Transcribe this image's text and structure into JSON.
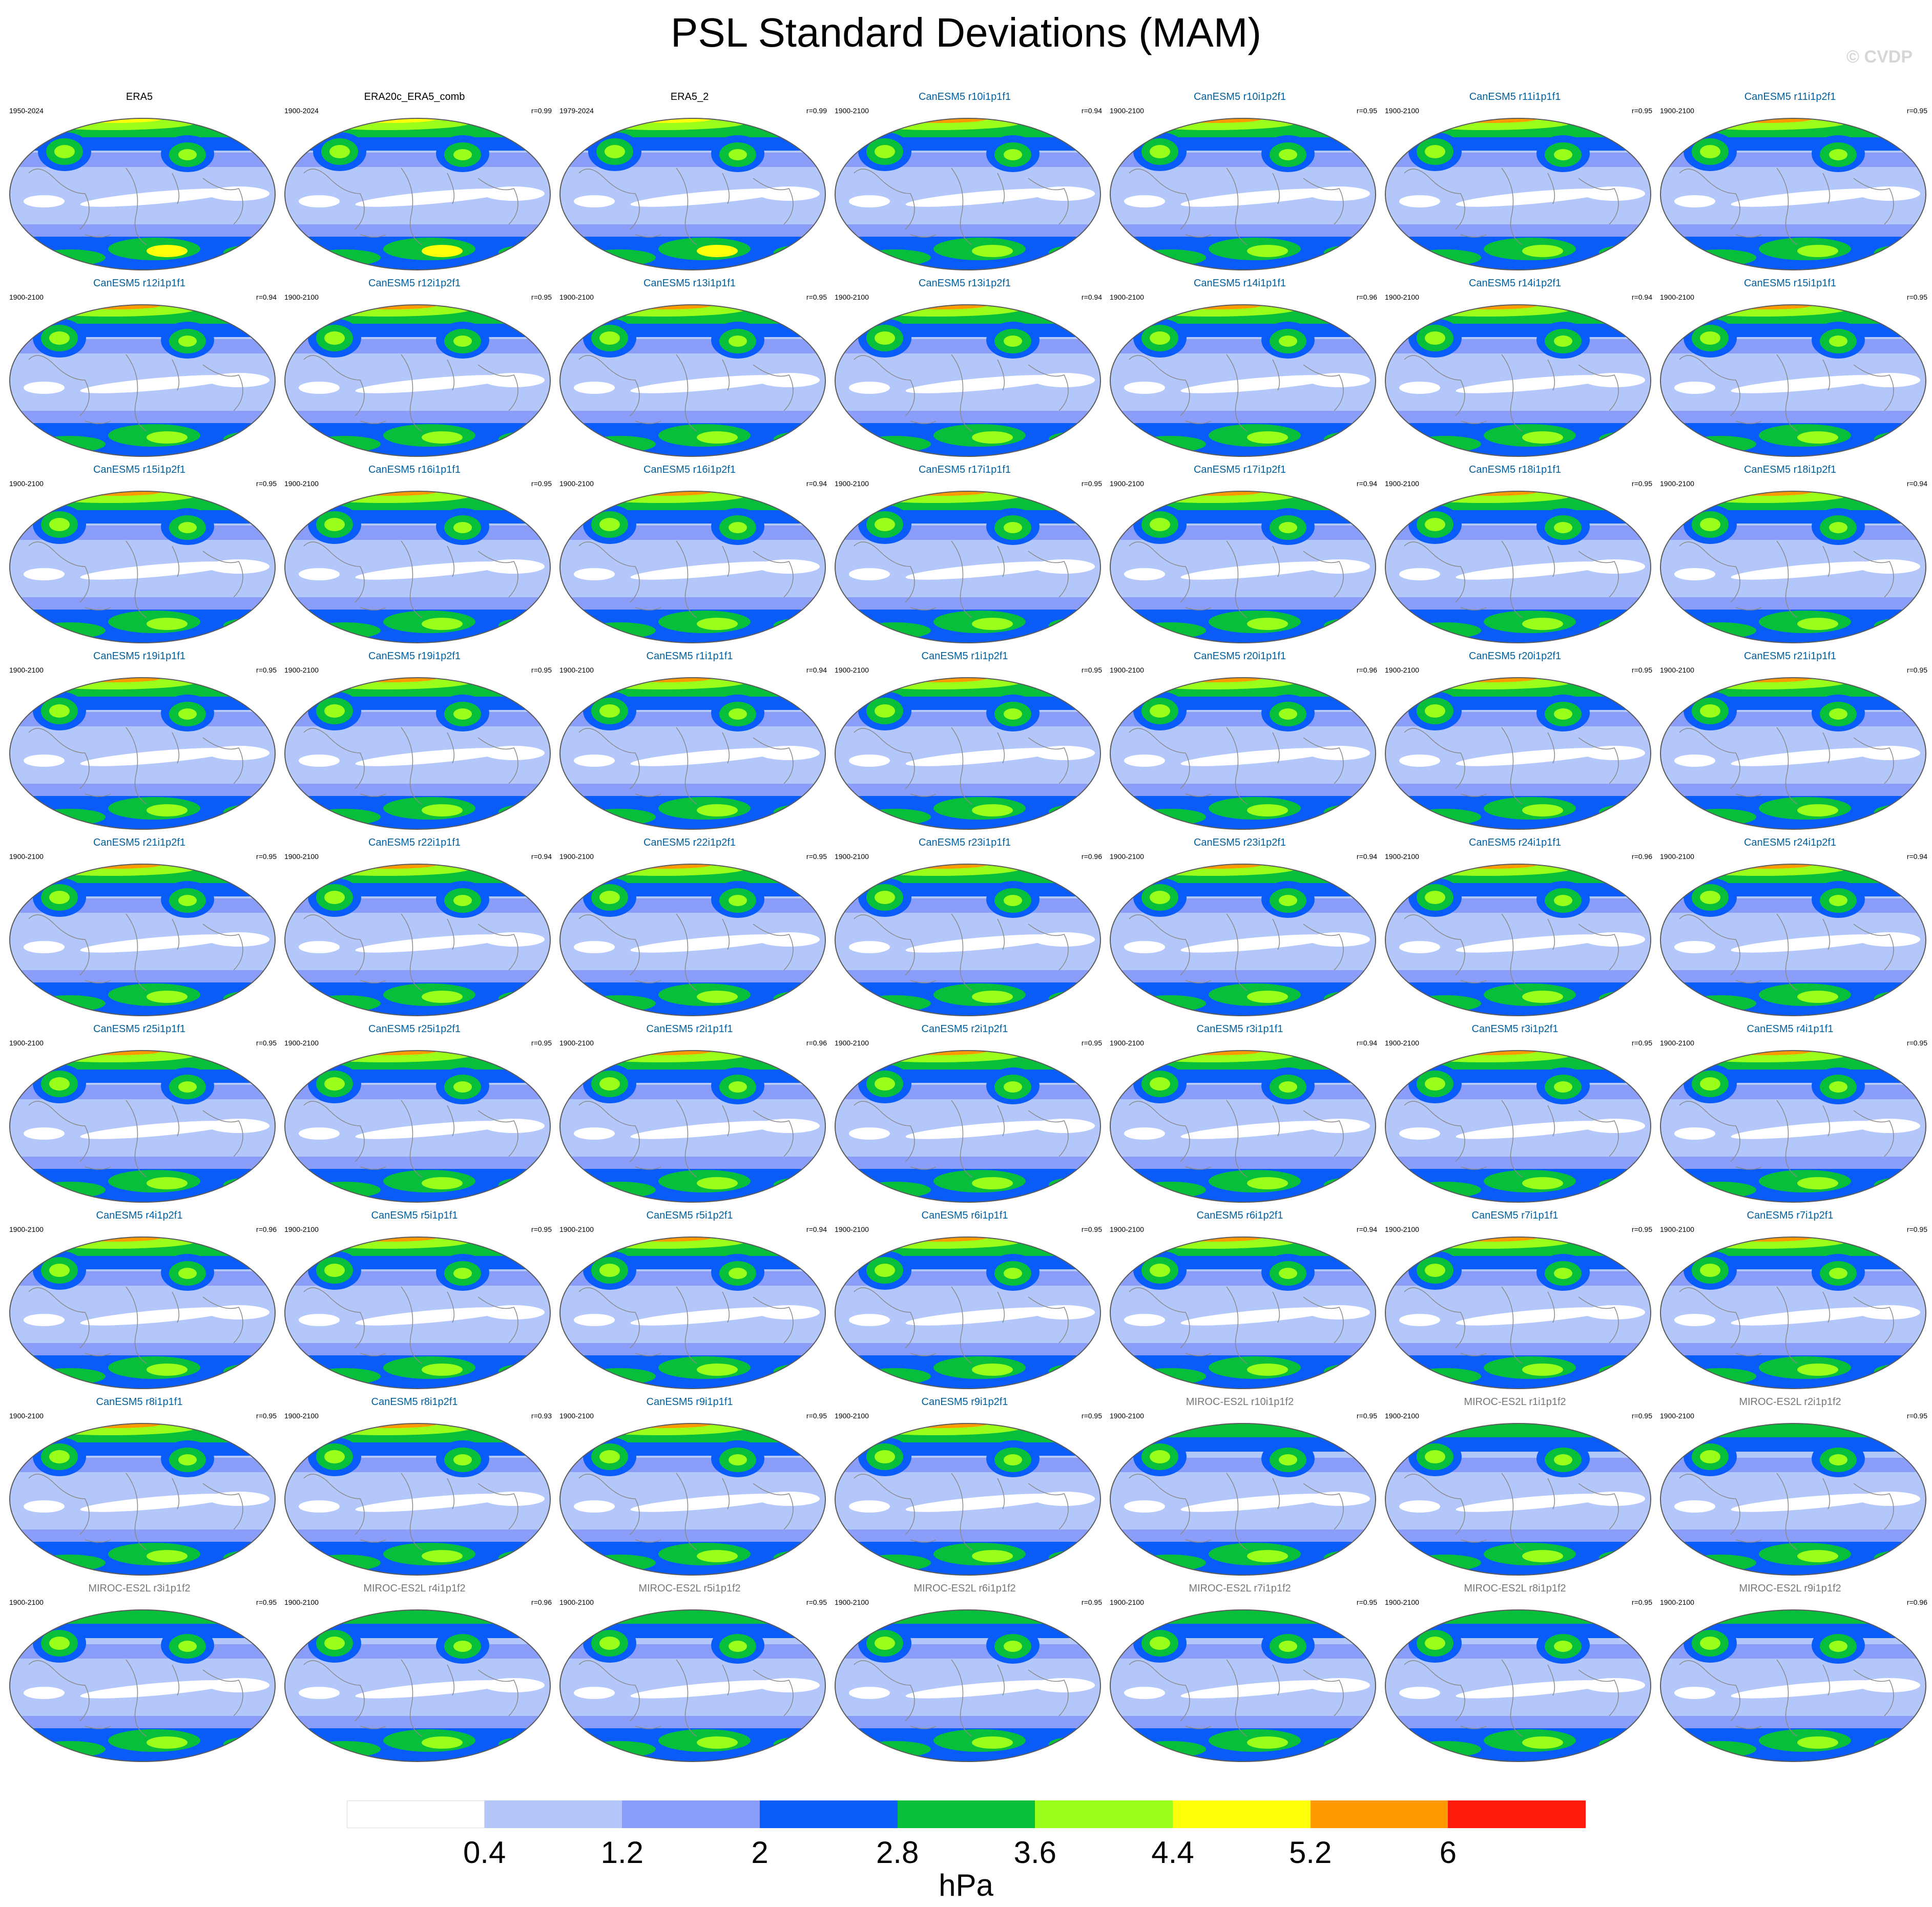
{
  "title": "PSL Standard Deviations (MAM)",
  "credit": "© CVDP",
  "units": "hPa",
  "colorbar": {
    "colors": [
      "#ffffff",
      "#b4c7fb",
      "#8a9df8",
      "#0a5cfa",
      "#07bf3b",
      "#9aff1a",
      "#ffff0a",
      "#ff9a00",
      "#ff1a0a"
    ],
    "labels": [
      "0.4",
      "1.2",
      "2",
      "2.8",
      "3.6",
      "4.4",
      "5.2",
      "6"
    ]
  },
  "title_colors": {
    "obs": "#000000",
    "CanESM5": "#005f9e",
    "MIROC-ES2L": "#777777"
  },
  "panels": [
    {
      "title": "ERA5",
      "period": "1950-2024",
      "r": "",
      "group": "obs"
    },
    {
      "title": "ERA20c_ERA5_comb",
      "period": "1900-2024",
      "r": "r=0.99",
      "group": "obs"
    },
    {
      "title": "ERA5_2",
      "period": "1979-2024",
      "r": "r=0.99",
      "group": "obs"
    },
    {
      "title": "CanESM5 r10i1p1f1",
      "period": "1900-2100",
      "r": "r=0.94",
      "group": "CanESM5"
    },
    {
      "title": "CanESM5 r10i1p2f1",
      "period": "1900-2100",
      "r": "r=0.95",
      "group": "CanESM5"
    },
    {
      "title": "CanESM5 r11i1p1f1",
      "period": "1900-2100",
      "r": "r=0.95",
      "group": "CanESM5"
    },
    {
      "title": "CanESM5 r11i1p2f1",
      "period": "1900-2100",
      "r": "r=0.95",
      "group": "CanESM5"
    },
    {
      "title": "CanESM5 r12i1p1f1",
      "period": "1900-2100",
      "r": "r=0.94",
      "group": "CanESM5"
    },
    {
      "title": "CanESM5 r12i1p2f1",
      "period": "1900-2100",
      "r": "r=0.95",
      "group": "CanESM5"
    },
    {
      "title": "CanESM5 r13i1p1f1",
      "period": "1900-2100",
      "r": "r=0.95",
      "group": "CanESM5"
    },
    {
      "title": "CanESM5 r13i1p2f1",
      "period": "1900-2100",
      "r": "r=0.94",
      "group": "CanESM5"
    },
    {
      "title": "CanESM5 r14i1p1f1",
      "period": "1900-2100",
      "r": "r=0.96",
      "group": "CanESM5"
    },
    {
      "title": "CanESM5 r14i1p2f1",
      "period": "1900-2100",
      "r": "r=0.94",
      "group": "CanESM5"
    },
    {
      "title": "CanESM5 r15i1p1f1",
      "period": "1900-2100",
      "r": "r=0.95",
      "group": "CanESM5"
    },
    {
      "title": "CanESM5 r15i1p2f1",
      "period": "1900-2100",
      "r": "r=0.95",
      "group": "CanESM5"
    },
    {
      "title": "CanESM5 r16i1p1f1",
      "period": "1900-2100",
      "r": "r=0.95",
      "group": "CanESM5"
    },
    {
      "title": "CanESM5 r16i1p2f1",
      "period": "1900-2100",
      "r": "r=0.94",
      "group": "CanESM5"
    },
    {
      "title": "CanESM5 r17i1p1f1",
      "period": "1900-2100",
      "r": "r=0.95",
      "group": "CanESM5"
    },
    {
      "title": "CanESM5 r17i1p2f1",
      "period": "1900-2100",
      "r": "r=0.94",
      "group": "CanESM5"
    },
    {
      "title": "CanESM5 r18i1p1f1",
      "period": "1900-2100",
      "r": "r=0.95",
      "group": "CanESM5"
    },
    {
      "title": "CanESM5 r18i1p2f1",
      "period": "1900-2100",
      "r": "r=0.94",
      "group": "CanESM5"
    },
    {
      "title": "CanESM5 r19i1p1f1",
      "period": "1900-2100",
      "r": "r=0.95",
      "group": "CanESM5"
    },
    {
      "title": "CanESM5 r19i1p2f1",
      "period": "1900-2100",
      "r": "r=0.95",
      "group": "CanESM5"
    },
    {
      "title": "CanESM5 r1i1p1f1",
      "period": "1900-2100",
      "r": "r=0.94",
      "group": "CanESM5"
    },
    {
      "title": "CanESM5 r1i1p2f1",
      "period": "1900-2100",
      "r": "r=0.95",
      "group": "CanESM5"
    },
    {
      "title": "CanESM5 r20i1p1f1",
      "period": "1900-2100",
      "r": "r=0.96",
      "group": "CanESM5"
    },
    {
      "title": "CanESM5 r20i1p2f1",
      "period": "1900-2100",
      "r": "r=0.95",
      "group": "CanESM5"
    },
    {
      "title": "CanESM5 r21i1p1f1",
      "period": "1900-2100",
      "r": "r=0.95",
      "group": "CanESM5"
    },
    {
      "title": "CanESM5 r21i1p2f1",
      "period": "1900-2100",
      "r": "r=0.95",
      "group": "CanESM5"
    },
    {
      "title": "CanESM5 r22i1p1f1",
      "period": "1900-2100",
      "r": "r=0.94",
      "group": "CanESM5"
    },
    {
      "title": "CanESM5 r22i1p2f1",
      "period": "1900-2100",
      "r": "r=0.95",
      "group": "CanESM5"
    },
    {
      "title": "CanESM5 r23i1p1f1",
      "period": "1900-2100",
      "r": "r=0.96",
      "group": "CanESM5"
    },
    {
      "title": "CanESM5 r23i1p2f1",
      "period": "1900-2100",
      "r": "r=0.94",
      "group": "CanESM5"
    },
    {
      "title": "CanESM5 r24i1p1f1",
      "period": "1900-2100",
      "r": "r=0.96",
      "group": "CanESM5"
    },
    {
      "title": "CanESM5 r24i1p2f1",
      "period": "1900-2100",
      "r": "r=0.94",
      "group": "CanESM5"
    },
    {
      "title": "CanESM5 r25i1p1f1",
      "period": "1900-2100",
      "r": "r=0.95",
      "group": "CanESM5"
    },
    {
      "title": "CanESM5 r25i1p2f1",
      "period": "1900-2100",
      "r": "r=0.95",
      "group": "CanESM5"
    },
    {
      "title": "CanESM5 r2i1p1f1",
      "period": "1900-2100",
      "r": "r=0.96",
      "group": "CanESM5"
    },
    {
      "title": "CanESM5 r2i1p2f1",
      "period": "1900-2100",
      "r": "r=0.95",
      "group": "CanESM5"
    },
    {
      "title": "CanESM5 r3i1p1f1",
      "period": "1900-2100",
      "r": "r=0.94",
      "group": "CanESM5"
    },
    {
      "title": "CanESM5 r3i1p2f1",
      "period": "1900-2100",
      "r": "r=0.95",
      "group": "CanESM5"
    },
    {
      "title": "CanESM5 r4i1p1f1",
      "period": "1900-2100",
      "r": "r=0.95",
      "group": "CanESM5"
    },
    {
      "title": "CanESM5 r4i1p2f1",
      "period": "1900-2100",
      "r": "r=0.96",
      "group": "CanESM5"
    },
    {
      "title": "CanESM5 r5i1p1f1",
      "period": "1900-2100",
      "r": "r=0.95",
      "group": "CanESM5"
    },
    {
      "title": "CanESM5 r5i1p2f1",
      "period": "1900-2100",
      "r": "r=0.94",
      "group": "CanESM5"
    },
    {
      "title": "CanESM5 r6i1p1f1",
      "period": "1900-2100",
      "r": "r=0.95",
      "group": "CanESM5"
    },
    {
      "title": "CanESM5 r6i1p2f1",
      "period": "1900-2100",
      "r": "r=0.94",
      "group": "CanESM5"
    },
    {
      "title": "CanESM5 r7i1p1f1",
      "period": "1900-2100",
      "r": "r=0.95",
      "group": "CanESM5"
    },
    {
      "title": "CanESM5 r7i1p2f1",
      "period": "1900-2100",
      "r": "r=0.95",
      "group": "CanESM5"
    },
    {
      "title": "CanESM5 r8i1p1f1",
      "period": "1900-2100",
      "r": "r=0.95",
      "group": "CanESM5"
    },
    {
      "title": "CanESM5 r8i1p2f1",
      "period": "1900-2100",
      "r": "r=0.93",
      "group": "CanESM5"
    },
    {
      "title": "CanESM5 r9i1p1f1",
      "period": "1900-2100",
      "r": "r=0.95",
      "group": "CanESM5"
    },
    {
      "title": "CanESM5 r9i1p2f1",
      "period": "1900-2100",
      "r": "r=0.95",
      "group": "CanESM5"
    },
    {
      "title": "MIROC-ES2L r10i1p1f2",
      "period": "1900-2100",
      "r": "r=0.95",
      "group": "MIROC-ES2L"
    },
    {
      "title": "MIROC-ES2L r1i1p1f2",
      "period": "1900-2100",
      "r": "r=0.95",
      "group": "MIROC-ES2L"
    },
    {
      "title": "MIROC-ES2L r2i1p1f2",
      "period": "1900-2100",
      "r": "r=0.95",
      "group": "MIROC-ES2L"
    },
    {
      "title": "MIROC-ES2L r3i1p1f2",
      "period": "1900-2100",
      "r": "r=0.95",
      "group": "MIROC-ES2L"
    },
    {
      "title": "MIROC-ES2L r4i1p1f2",
      "period": "1900-2100",
      "r": "r=0.96",
      "group": "MIROC-ES2L"
    },
    {
      "title": "MIROC-ES2L r5i1p1f2",
      "period": "1900-2100",
      "r": "r=0.95",
      "group": "MIROC-ES2L"
    },
    {
      "title": "MIROC-ES2L r6i1p1f2",
      "period": "1900-2100",
      "r": "r=0.95",
      "group": "MIROC-ES2L"
    },
    {
      "title": "MIROC-ES2L r7i1p1f2",
      "period": "1900-2100",
      "r": "r=0.95",
      "group": "MIROC-ES2L"
    },
    {
      "title": "MIROC-ES2L r8i1p1f2",
      "period": "1900-2100",
      "r": "r=0.95",
      "group": "MIROC-ES2L"
    },
    {
      "title": "MIROC-ES2L r9i1p1f2",
      "period": "1900-2100",
      "r": "r=0.96",
      "group": "MIROC-ES2L"
    }
  ]
}
